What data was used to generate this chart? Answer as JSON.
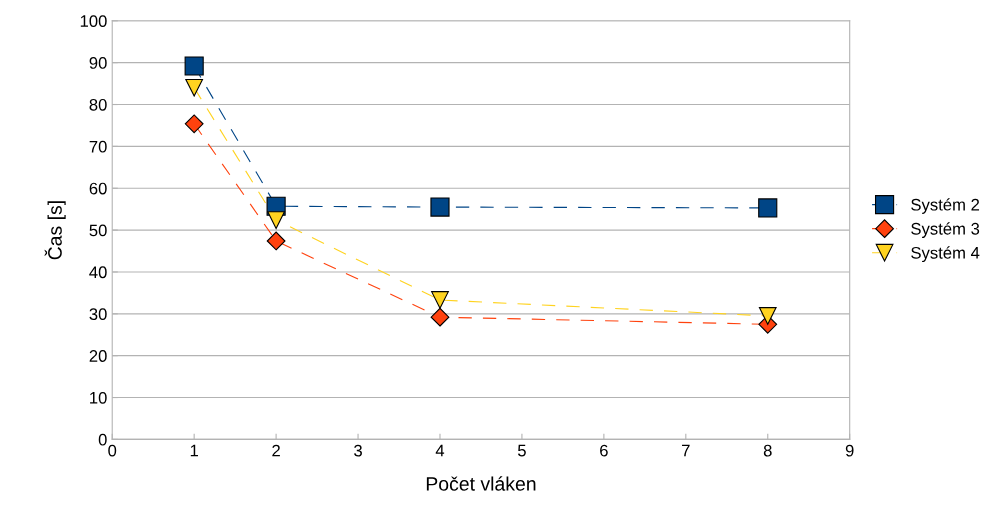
{
  "chart_data": {
    "type": "line",
    "xlabel": "Počet vláken",
    "ylabel": "Čas [s]",
    "xlim": [
      0,
      9
    ],
    "xticks": [
      0,
      1,
      2,
      3,
      4,
      5,
      6,
      7,
      8,
      9
    ],
    "ylim": [
      0,
      100
    ],
    "yticks": [
      0,
      10,
      20,
      30,
      40,
      50,
      60,
      70,
      80,
      90,
      100
    ],
    "grid": "y",
    "legend": "right",
    "line_style": "dashed",
    "series": [
      {
        "name": "Systém 2",
        "color": "#004586",
        "marker": "square",
        "x": [
          1,
          2,
          4,
          8
        ],
        "values": [
          89.2,
          55.7,
          55.5,
          55.3
        ]
      },
      {
        "name": "Systém 3",
        "color": "#ff420e",
        "marker": "diamond",
        "x": [
          1,
          2,
          4,
          8
        ],
        "values": [
          75.4,
          47.4,
          29.2,
          27.5
        ]
      },
      {
        "name": "Systém 4",
        "color": "#ffd320",
        "marker": "triangle",
        "x": [
          1,
          2,
          4,
          8
        ],
        "values": [
          84.0,
          52.4,
          33.3,
          29.5
        ]
      }
    ]
  }
}
